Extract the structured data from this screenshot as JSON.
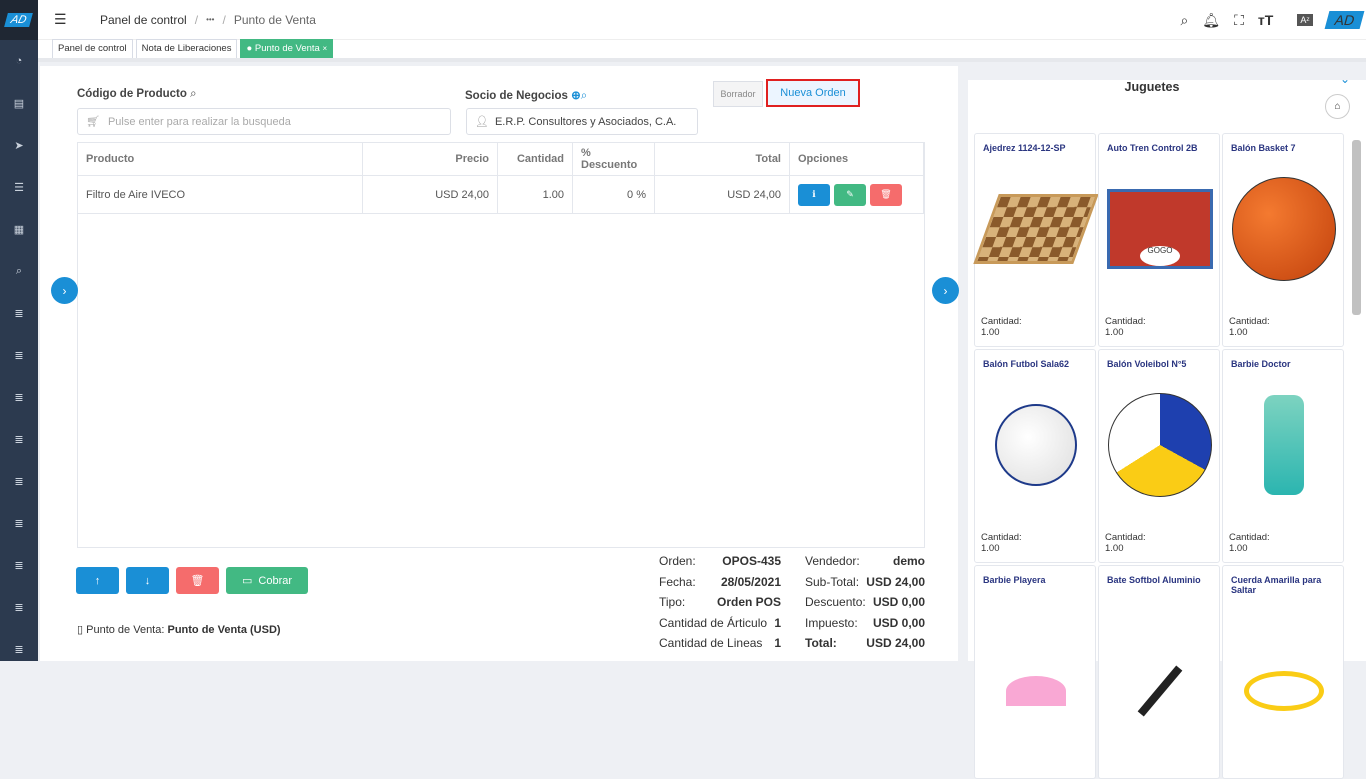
{
  "header": {
    "logo": "AD",
    "breadcrumb": [
      "Panel de control",
      "•••",
      "Punto de Venta"
    ],
    "icons": [
      "search-icon",
      "bell-icon",
      "fullscreen-icon",
      "font-size-icon",
      "translate-icon"
    ],
    "avatar": "AD"
  },
  "sidebar": {
    "icons": [
      "dashboard-icon",
      "document-icon",
      "send-icon",
      "list-icon",
      "file-icon",
      "search-icon",
      "menu-list-icon",
      "menu-list-icon",
      "menu-list-icon",
      "menu-list-icon",
      "menu-list-icon",
      "menu-list-icon",
      "menu-list-icon",
      "menu-list-icon",
      "menu-list-icon"
    ]
  },
  "tabs": [
    {
      "label": "Panel de control"
    },
    {
      "label": "Nota de Liberaciones"
    },
    {
      "label": "Punto de Venta",
      "active": true,
      "close": "×"
    }
  ],
  "form": {
    "product_label": "Código de Producto",
    "product_placeholder": "Pulse enter para realizar la busqueda",
    "partner_label": "Socio de Negocios",
    "partner_value": "E.R.P. Consultores y Asociados, C.A.",
    "draft_label": "Borrador",
    "new_order_label": "Nueva Orden"
  },
  "table": {
    "headers": [
      "Producto",
      "Precio",
      "Cantidad",
      "% Descuento",
      "Total",
      "Opciones"
    ],
    "rows": [
      {
        "producto": "Filtro de Aire IVECO",
        "precio": "USD 24,00",
        "cantidad": "1.00",
        "descuento": "0 %",
        "total": "USD 24,00"
      }
    ]
  },
  "actions": {
    "cobrar": "Cobrar"
  },
  "pos": {
    "label": "Punto de Venta:",
    "value": "Punto de Venta (USD)"
  },
  "summary": {
    "left": [
      {
        "k": "Orden:",
        "v": "OPOS-435"
      },
      {
        "k": "Fecha:",
        "v": "28/05/2021"
      },
      {
        "k": "Tipo:",
        "v": "Orden POS"
      },
      {
        "k": "Cantidad de Árticulo",
        "v": "1"
      },
      {
        "k": "Cantidad de Lineas",
        "v": "1"
      }
    ],
    "right": [
      {
        "k": "Vendedor:",
        "v": "demo"
      },
      {
        "k": "Sub-Total:",
        "v": "USD 24,00"
      },
      {
        "k": "Descuento:",
        "v": "USD 0,00"
      },
      {
        "k": "Impuesto:",
        "v": "USD 0,00"
      },
      {
        "k": "Total:",
        "v": "USD 24,00"
      }
    ]
  },
  "catalog": {
    "title": "Juguetes",
    "qty_label": "Cantidad:",
    "products": [
      {
        "name": "Ajedrez 1124-12-SP",
        "qty": "1.00"
      },
      {
        "name": "Auto Tren Control 2B",
        "qty": "1.00"
      },
      {
        "name": "Balón Basket 7",
        "qty": "1.00"
      },
      {
        "name": "Balón Futbol Sala62",
        "qty": "1.00"
      },
      {
        "name": "Balón Voleibol N°5",
        "qty": "1.00"
      },
      {
        "name": "Barbie Doctor",
        "qty": "1.00"
      },
      {
        "name": "Barbie Playera"
      },
      {
        "name": "Bate Softbol Aluminio"
      },
      {
        "name": "Cuerda Amarilla para Saltar"
      }
    ]
  },
  "colors": {
    "primary": "#1a8fd6",
    "success": "#42b983",
    "danger": "#f56c6c",
    "sidebar": "#2c3a4f"
  }
}
